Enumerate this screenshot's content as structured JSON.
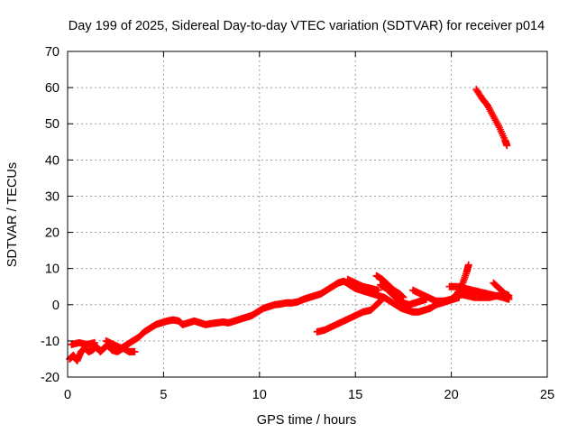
{
  "chart_data": {
    "type": "scatter",
    "title": "Day 199 of 2025, Sidereal Day-to-day VTEC variation (SDTVAR) for receiver p014",
    "xlabel": "GPS time / hours",
    "ylabel": "SDTVAR / TECUs",
    "xlim": [
      0,
      25
    ],
    "ylim": [
      -20,
      70
    ],
    "xticks": [
      "0",
      "5",
      "10",
      "15",
      "20",
      "25"
    ],
    "yticks": [
      "-20",
      "-10",
      "0",
      "10",
      "20",
      "30",
      "40",
      "50",
      "60",
      "70"
    ],
    "grid": true,
    "marker": "+",
    "colors": {
      "series": "#ff0000",
      "grid": "#a0a0a0",
      "axes": "#000000"
    },
    "series": [
      {
        "points": [
          [
            0.1,
            -15
          ],
          [
            0.3,
            -14
          ],
          [
            0.5,
            -15.5
          ],
          [
            0.7,
            -13
          ],
          [
            0.9,
            -12
          ],
          [
            1.1,
            -13
          ],
          [
            1.3,
            -12.5
          ],
          [
            1.5,
            -11.5
          ],
          [
            1.7,
            -13
          ],
          [
            1.9,
            -12
          ],
          [
            2.1,
            -11
          ],
          [
            2.3,
            -12.5
          ],
          [
            2.6,
            -13
          ],
          [
            2.9,
            -12
          ],
          [
            3.2,
            -13
          ],
          [
            3.5,
            -13
          ],
          [
            0.2,
            -11
          ],
          [
            0.6,
            -10.5
          ],
          [
            1.0,
            -11
          ],
          [
            1.4,
            -10.5
          ],
          [
            2.0,
            -10
          ],
          [
            2.4,
            -11
          ],
          [
            2.8,
            -12
          ],
          [
            3.1,
            -11
          ],
          [
            3.4,
            -10
          ],
          [
            3.7,
            -9
          ],
          [
            4.0,
            -7.5
          ],
          [
            4.3,
            -6.5
          ],
          [
            4.6,
            -5.5
          ],
          [
            4.9,
            -5
          ],
          [
            5.2,
            -4.5
          ],
          [
            5.5,
            -4.2
          ],
          [
            5.8,
            -4.5
          ],
          [
            6.0,
            -5.5
          ],
          [
            6.3,
            -5
          ],
          [
            6.6,
            -4.5
          ],
          [
            6.9,
            -5
          ],
          [
            7.2,
            -5.5
          ],
          [
            7.5,
            -5.2
          ],
          [
            7.8,
            -5
          ],
          [
            8.1,
            -4.8
          ],
          [
            8.4,
            -5
          ],
          [
            8.7,
            -4.5
          ],
          [
            9.0,
            -4
          ],
          [
            9.3,
            -3.5
          ],
          [
            9.6,
            -3
          ],
          [
            9.9,
            -2
          ],
          [
            10.2,
            -1
          ],
          [
            10.5,
            -0.5
          ],
          [
            10.8,
            0
          ],
          [
            11.1,
            0.2
          ],
          [
            11.4,
            0.5
          ],
          [
            11.7,
            0.5
          ],
          [
            12.0,
            0.8
          ],
          [
            12.3,
            1.5
          ],
          [
            12.6,
            2
          ],
          [
            12.9,
            2.5
          ],
          [
            13.2,
            3
          ],
          [
            13.5,
            4
          ],
          [
            13.8,
            5
          ],
          [
            14.1,
            6
          ],
          [
            14.4,
            6.5
          ],
          [
            14.7,
            5.5
          ],
          [
            15.0,
            4.5
          ],
          [
            15.3,
            4
          ],
          [
            15.6,
            3.5
          ],
          [
            15.9,
            3
          ],
          [
            16.2,
            2.5
          ],
          [
            16.5,
            2
          ],
          [
            16.8,
            1
          ],
          [
            17.1,
            0
          ],
          [
            17.4,
            -1
          ],
          [
            17.7,
            -1.5
          ],
          [
            18.0,
            -2
          ],
          [
            18.3,
            -2
          ],
          [
            18.6,
            -1.5
          ],
          [
            18.9,
            -1
          ],
          [
            19.2,
            0
          ],
          [
            19.5,
            0.5
          ],
          [
            19.8,
            1
          ],
          [
            20.1,
            1.5
          ],
          [
            20.4,
            2
          ],
          [
            14.6,
            7
          ],
          [
            15.0,
            6
          ],
          [
            15.4,
            5
          ],
          [
            15.8,
            4.5
          ],
          [
            16.2,
            4
          ],
          [
            13.0,
            -7.5
          ],
          [
            13.4,
            -7
          ],
          [
            13.8,
            -6
          ],
          [
            14.2,
            -5
          ],
          [
            14.6,
            -4
          ],
          [
            15.0,
            -3
          ],
          [
            15.4,
            -2
          ],
          [
            15.8,
            -1.5
          ],
          [
            16.1,
            0
          ],
          [
            16.3,
            1
          ],
          [
            16.1,
            8
          ],
          [
            16.4,
            7
          ],
          [
            16.7,
            5.5
          ],
          [
            17.0,
            4
          ],
          [
            17.3,
            3
          ],
          [
            17.5,
            2
          ],
          [
            16.3,
            5.5
          ],
          [
            16.6,
            4.5
          ],
          [
            16.9,
            3
          ],
          [
            17.2,
            1.5
          ],
          [
            17.5,
            0.5
          ],
          [
            17.8,
            0
          ],
          [
            18.1,
            0.5
          ],
          [
            18.4,
            1
          ],
          [
            18.7,
            1.5
          ],
          [
            18.0,
            4
          ],
          [
            18.4,
            3
          ],
          [
            18.8,
            2
          ],
          [
            19.2,
            1
          ],
          [
            19.6,
            1
          ],
          [
            20.0,
            1.5
          ],
          [
            20.3,
            3
          ],
          [
            20.6,
            6
          ],
          [
            20.8,
            9
          ],
          [
            20.9,
            11
          ],
          [
            19.9,
            5
          ],
          [
            20.3,
            5
          ],
          [
            20.7,
            4.5
          ],
          [
            21.1,
            4
          ],
          [
            21.5,
            3.5
          ],
          [
            21.9,
            3
          ],
          [
            22.3,
            2.5
          ],
          [
            22.7,
            2
          ],
          [
            23.0,
            1.5
          ],
          [
            20.4,
            3
          ],
          [
            20.8,
            2.5
          ],
          [
            21.2,
            2
          ],
          [
            21.6,
            2
          ],
          [
            22.0,
            2
          ],
          [
            22.4,
            2.5
          ],
          [
            22.8,
            2.5
          ],
          [
            23.0,
            2
          ],
          [
            22.2,
            6
          ],
          [
            22.5,
            4.5
          ],
          [
            22.8,
            3
          ],
          [
            23.0,
            2.5
          ],
          [
            21.3,
            59.5
          ],
          [
            21.6,
            57
          ],
          [
            21.9,
            55
          ],
          [
            22.2,
            52
          ],
          [
            22.5,
            49
          ],
          [
            22.8,
            45.5
          ],
          [
            22.9,
            44
          ]
        ]
      }
    ]
  }
}
